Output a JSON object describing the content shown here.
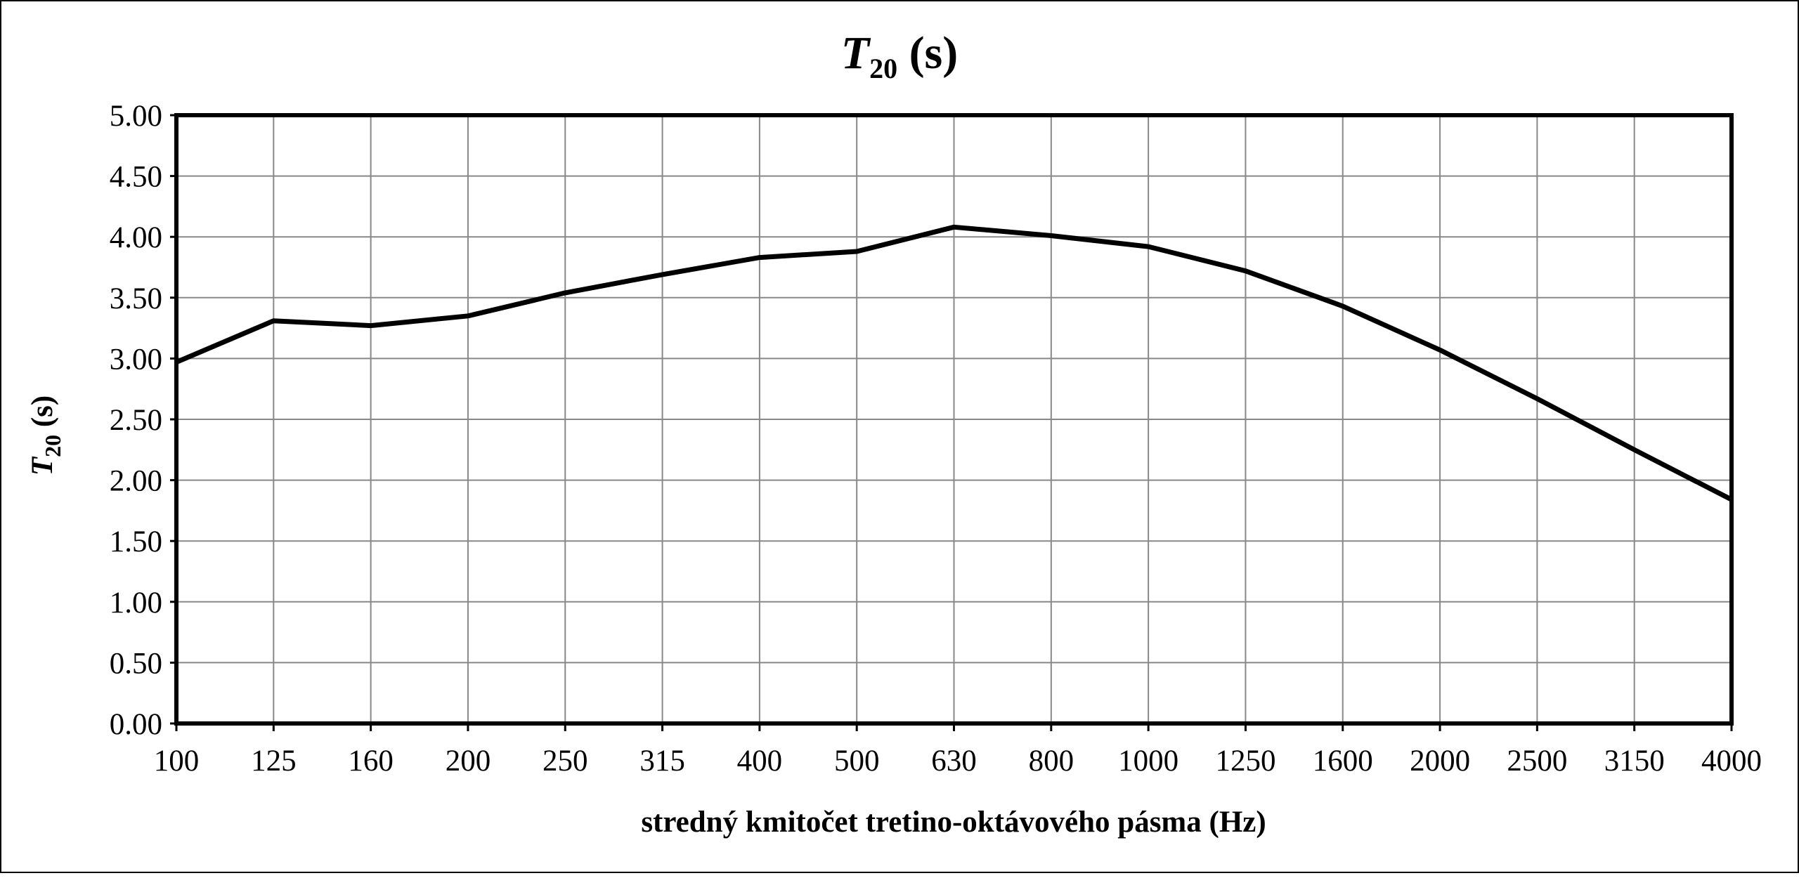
{
  "chart_data": {
    "type": "line",
    "title": {
      "symbol": "T",
      "subscript": "20",
      "unit": " (s)"
    },
    "xlabel": "stredný kmitočet tretino-oktávového pásma (Hz)",
    "ylabel": {
      "symbol": "T",
      "subscript": "20",
      "unit": " (s)"
    },
    "categories": [
      "100",
      "125",
      "160",
      "200",
      "250",
      "315",
      "400",
      "500",
      "630",
      "800",
      "1000",
      "1250",
      "1600",
      "2000",
      "2500",
      "3150",
      "4000"
    ],
    "series": [
      {
        "values": [
          2.97,
          3.31,
          3.27,
          3.35,
          3.54,
          3.69,
          3.83,
          3.88,
          4.08,
          4.01,
          3.92,
          3.72,
          3.43,
          3.07,
          2.67,
          2.25,
          1.84
        ],
        "color": "#000000"
      }
    ],
    "ylim": [
      0,
      5
    ],
    "yticks": [
      "0.00",
      "0.50",
      "1.00",
      "1.50",
      "2.00",
      "2.50",
      "3.00",
      "3.50",
      "4.00",
      "4.50",
      "5.00"
    ],
    "grid": true,
    "legend": "none",
    "colors": {
      "line": "#000000",
      "grid": "#888888",
      "frame": "#000000",
      "background": "#ffffff"
    }
  }
}
